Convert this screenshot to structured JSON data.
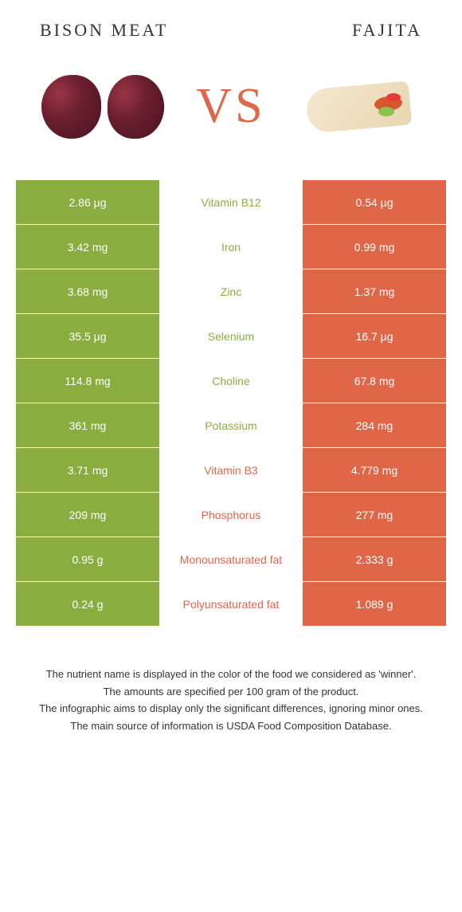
{
  "titles": {
    "left": "BISON MEAT",
    "right": "FAJITA",
    "vs": "VS"
  },
  "colors": {
    "green": "#8aad3f",
    "orange": "#e06648",
    "white": "#ffffff"
  },
  "rows": [
    {
      "left_val": "2.86 µg",
      "name": "Vitamin B12",
      "right_val": "0.54 µg",
      "winner": "left"
    },
    {
      "left_val": "3.42 mg",
      "name": "Iron",
      "right_val": "0.99 mg",
      "winner": "left"
    },
    {
      "left_val": "3.68 mg",
      "name": "Zinc",
      "right_val": "1.37 mg",
      "winner": "left"
    },
    {
      "left_val": "35.5 µg",
      "name": "Selenium",
      "right_val": "16.7 µg",
      "winner": "left"
    },
    {
      "left_val": "114.8 mg",
      "name": "Choline",
      "right_val": "67.8 mg",
      "winner": "left"
    },
    {
      "left_val": "361 mg",
      "name": "Potassium",
      "right_val": "284 mg",
      "winner": "left"
    },
    {
      "left_val": "3.71 mg",
      "name": "Vitamin B3",
      "right_val": "4.779 mg",
      "winner": "right"
    },
    {
      "left_val": "209 mg",
      "name": "Phosphorus",
      "right_val": "277 mg",
      "winner": "right"
    },
    {
      "left_val": "0.95 g",
      "name": "Monounsaturated fat",
      "right_val": "2.333 g",
      "winner": "right"
    },
    {
      "left_val": "0.24 g",
      "name": "Polyunsaturated fat",
      "right_val": "1.089 g",
      "winner": "right"
    }
  ],
  "footer": {
    "line1": "The nutrient name is displayed in the color of the food we considered as 'winner'.",
    "line2": "The amounts are specified per 100 gram of the product.",
    "line3": "The infographic aims to display only the significant differences, ignoring minor ones.",
    "line4": "The main source of information is USDA Food Composition Database."
  }
}
